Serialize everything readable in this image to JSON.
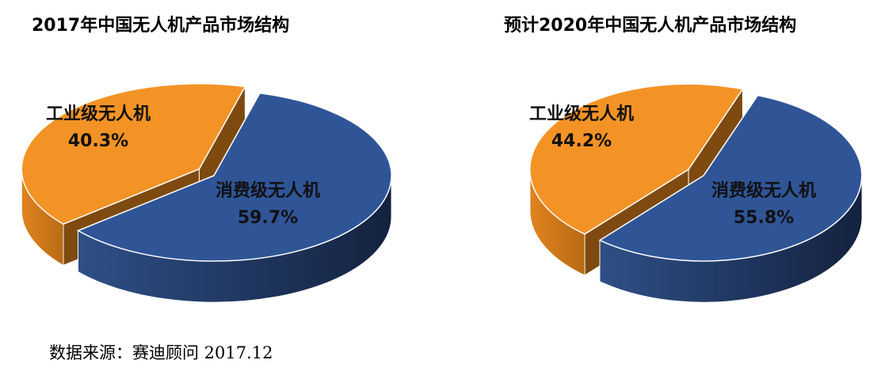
{
  "chart_data": [
    {
      "type": "pie",
      "title": "2017年中国无人机产品市场结构",
      "slices": [
        {
          "label": "消费级无人机",
          "value": 59.7,
          "value_label": "59.7%",
          "color": "#2F5597"
        },
        {
          "label": "工业级无人机",
          "value": 40.3,
          "value_label": "40.3%",
          "color": "#F39325"
        }
      ],
      "style": "3d-exploded"
    },
    {
      "type": "pie",
      "title": "预计2020年中国无人机产品市场结构",
      "slices": [
        {
          "label": "消费级无人机",
          "value": 55.8,
          "value_label": "55.8%",
          "color": "#2F5597"
        },
        {
          "label": "工业级无人机",
          "value": 44.2,
          "value_label": "44.2%",
          "color": "#F39325"
        }
      ],
      "style": "3d-exploded"
    }
  ],
  "source": "数据来源：赛迪顾问 2017.12"
}
